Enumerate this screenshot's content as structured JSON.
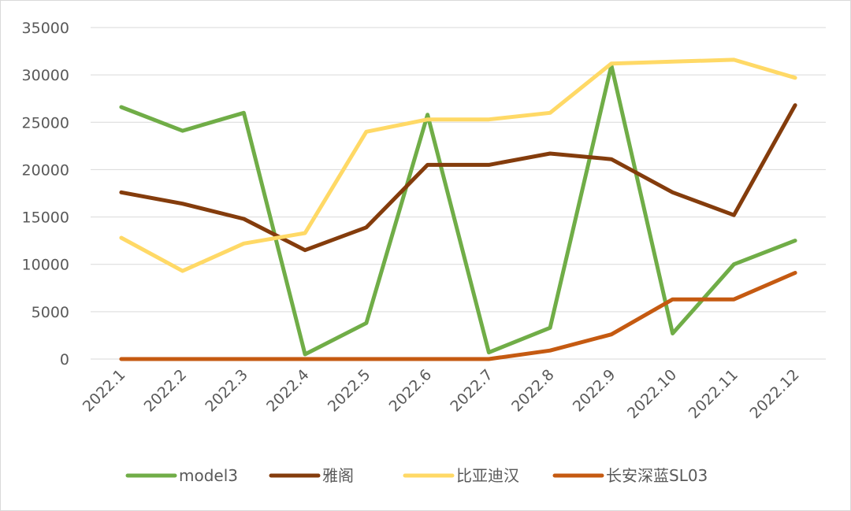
{
  "chart_data": {
    "type": "line",
    "title": "",
    "xlabel": "",
    "ylabel": "",
    "categories": [
      "2022.1",
      "2022.2",
      "2022.3",
      "2022.4",
      "2022.5",
      "2022.6",
      "2022.7",
      "2022.8",
      "2022.9",
      "2022.10",
      "2022.11",
      "2022.12"
    ],
    "ylim": [
      0,
      35000
    ],
    "yticks": [
      0,
      5000,
      10000,
      15000,
      20000,
      25000,
      30000,
      35000
    ],
    "grid": true,
    "legend_position": "bottom",
    "series": [
      {
        "name": "model3",
        "color": "#70ad47",
        "values": [
          26600,
          24100,
          26000,
          500,
          3800,
          25800,
          700,
          3300,
          31000,
          2700,
          10000,
          12500
        ]
      },
      {
        "name": "雅阁",
        "color": "#843c0c",
        "values": [
          17600,
          16400,
          14800,
          11500,
          13900,
          20500,
          20500,
          21700,
          21100,
          17600,
          15200,
          26800
        ]
      },
      {
        "name": "比亚迪汉",
        "color": "#ffd966",
        "values": [
          12800,
          9300,
          12200,
          13300,
          24000,
          25300,
          25300,
          26000,
          31200,
          31400,
          31600,
          29700
        ]
      },
      {
        "name": "长安深蓝SL03",
        "color": "#c55a11",
        "values": [
          0,
          0,
          0,
          0,
          0,
          0,
          0,
          900,
          2600,
          6300,
          6300,
          9100
        ]
      }
    ]
  }
}
